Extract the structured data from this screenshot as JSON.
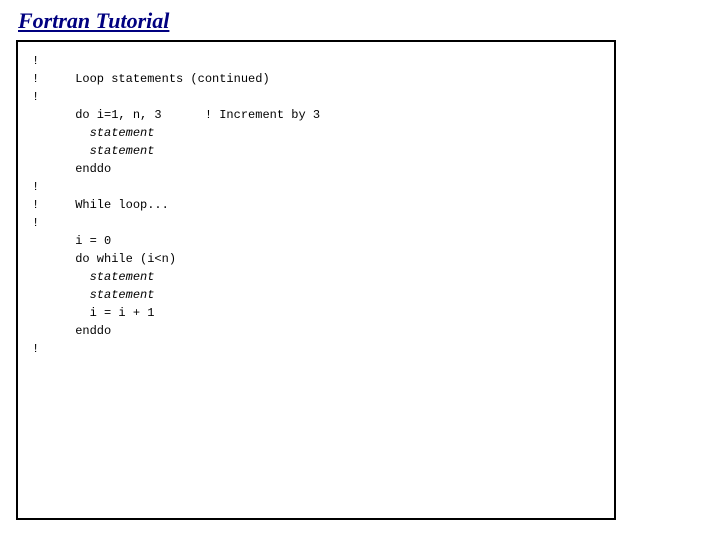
{
  "title": "Fortran Tutorial",
  "code_lines": [
    {
      "text": "!",
      "italic": false
    },
    {
      "text": "!     Loop statements (continued)",
      "italic": false
    },
    {
      "text": "!",
      "italic": false
    },
    {
      "text": "      do i=1, n, 3      ! Increment by 3",
      "italic": false
    },
    {
      "text": "        statement",
      "italic": true
    },
    {
      "text": "        statement",
      "italic": true
    },
    {
      "text": "      enddo",
      "italic": false
    },
    {
      "text": "!",
      "italic": false
    },
    {
      "text": "!     While loop...",
      "italic": false
    },
    {
      "text": "!",
      "italic": false
    },
    {
      "text": "      i = 0",
      "italic": false
    },
    {
      "text": "      do while (i<n)",
      "italic": false
    },
    {
      "text": "        statement",
      "italic": true
    },
    {
      "text": "        statement",
      "italic": true
    },
    {
      "text": "        i = i + 1",
      "italic": false
    },
    {
      "text": "      enddo",
      "italic": false
    },
    {
      "text": "!",
      "italic": false
    }
  ]
}
